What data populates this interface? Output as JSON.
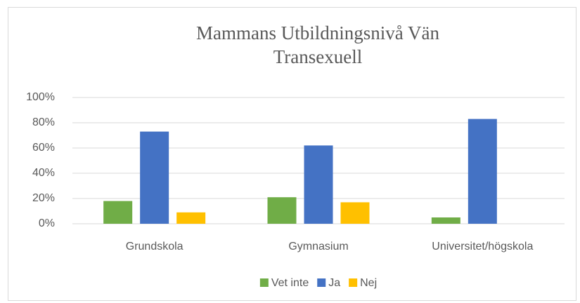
{
  "chart_data": {
    "type": "bar",
    "title": "Mammans Utbildningsnivå Vän Transexuell",
    "categories": [
      "Grundskola",
      "Gymnasium",
      "Universitet/högskola"
    ],
    "series": [
      {
        "name": "Vet inte",
        "color": "#70ad47",
        "values": [
          18,
          21,
          5
        ]
      },
      {
        "name": "Ja",
        "color": "#4472c4",
        "values": [
          73,
          62,
          83
        ]
      },
      {
        "name": "Nej",
        "color": "#ffc000",
        "values": [
          9,
          17,
          0
        ]
      }
    ],
    "ylim": [
      0,
      100
    ],
    "yticks": [
      {
        "value": 0,
        "label": "0%"
      },
      {
        "value": 20,
        "label": "20%"
      },
      {
        "value": 40,
        "label": "40%"
      },
      {
        "value": 60,
        "label": "60%"
      },
      {
        "value": 80,
        "label": "80%"
      },
      {
        "value": 100,
        "label": "100%"
      }
    ],
    "grid": true,
    "legend": "bottom"
  }
}
